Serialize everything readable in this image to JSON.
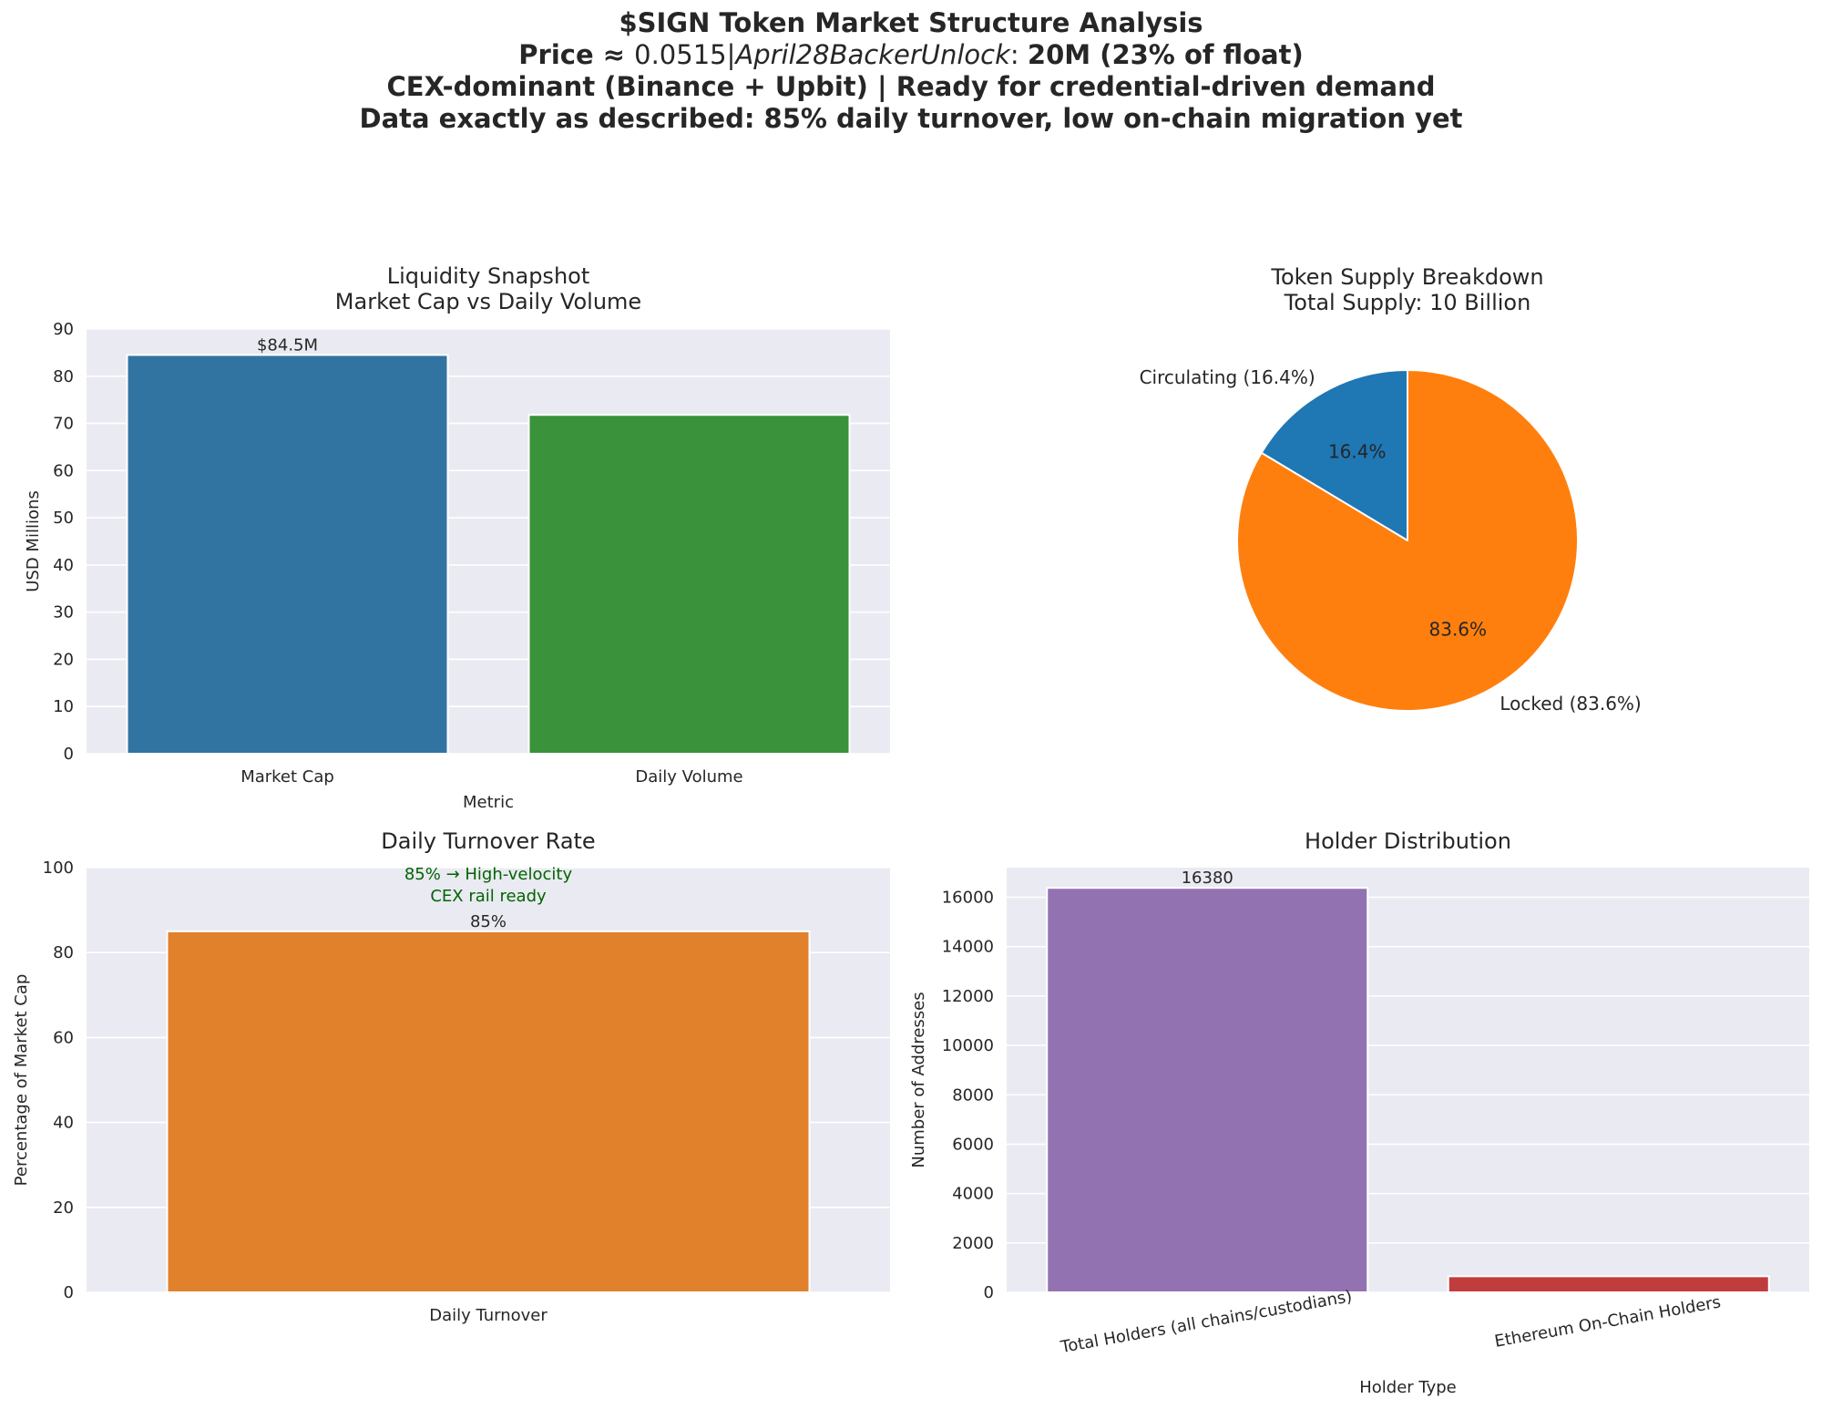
{
  "suptitle": {
    "line1": "$SIGN Token Market Structure Analysis",
    "line2_prefix": "Price ≈ ",
    "line2_math_a": "0.0515|",
    "line2_math_b": "April28BackerUnlock",
    "line2_math_c": ": ",
    "line2_suffix": "20M (23% of float)",
    "line3": "CEX-dominant (Binance + Upbit) | Ready for credential-driven demand",
    "line4": "Data exactly as described: 85% daily turnover, low on-chain migration yet"
  },
  "chart_data": [
    {
      "id": "liquidity",
      "type": "bar",
      "title_line1": "Liquidity Snapshot",
      "title_line2": "Market Cap vs Daily Volume",
      "categories": [
        "Market Cap",
        "Daily Volume"
      ],
      "values": [
        84.5,
        71.8
      ],
      "colors": [
        "#3274a1",
        "#3a923a"
      ],
      "bar_labels": [
        "$84.5M",
        ""
      ],
      "xlabel": "Metric",
      "ylabel": "USD Millions",
      "ylim": [
        0,
        90
      ],
      "yticks": [
        0,
        10,
        20,
        30,
        40,
        50,
        60,
        70,
        80,
        90
      ],
      "grid": true
    },
    {
      "id": "supply",
      "type": "pie",
      "title_line1": "Token Supply Breakdown",
      "title_line2": "Total Supply: 10 Billion",
      "slices": [
        {
          "label": "Circulating (16.4%)",
          "value": 16.4,
          "pct_label": "16.4%",
          "color": "#1f77b4"
        },
        {
          "label": "Locked (83.6%)",
          "value": 83.6,
          "pct_label": "83.6%",
          "color": "#ff7f0e"
        }
      ],
      "start_angle_deg": 90
    },
    {
      "id": "turnover",
      "type": "bar",
      "title": "Daily Turnover Rate",
      "categories": [
        "Daily Turnover"
      ],
      "values": [
        85
      ],
      "colors": [
        "#e1812c"
      ],
      "bar_labels": [
        "85%"
      ],
      "annotation_line1": "85% → High-velocity",
      "annotation_line2": "CEX rail ready",
      "annotation_color": "#006400",
      "xlabel": "",
      "ylabel": "Percentage of Market Cap",
      "ylim": [
        0,
        100
      ],
      "yticks": [
        0,
        20,
        40,
        60,
        80,
        100
      ],
      "grid": true
    },
    {
      "id": "holders",
      "type": "bar",
      "title": "Holder Distribution",
      "categories": [
        "Total Holders (all chains/custodians)",
        "Ethereum On-Chain Holders"
      ],
      "values": [
        16380,
        650
      ],
      "colors": [
        "#9372b2",
        "#c03d3e"
      ],
      "bar_labels": [
        "16380",
        ""
      ],
      "xlabel": "Holder Type",
      "ylabel": "Number of Addresses",
      "ylim": [
        0,
        17200
      ],
      "yticks": [
        0,
        2000,
        4000,
        6000,
        8000,
        10000,
        12000,
        14000,
        16000
      ],
      "tick_rotation_deg": 10,
      "grid": true
    }
  ]
}
